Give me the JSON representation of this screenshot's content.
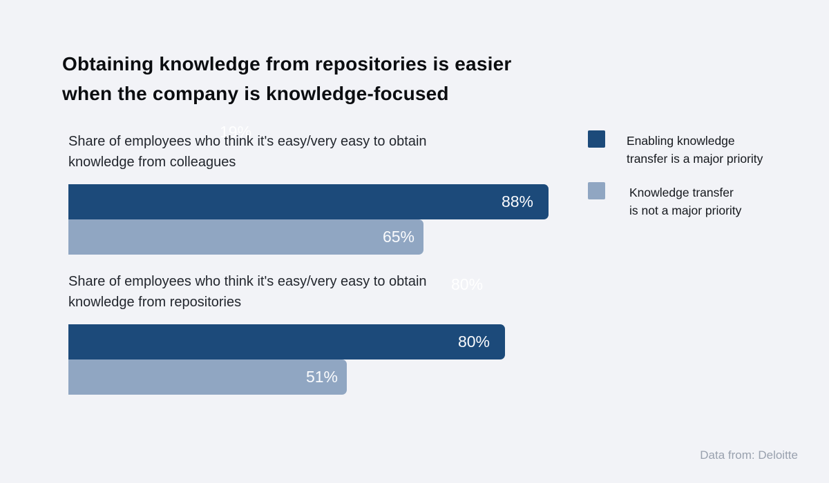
{
  "title": "Obtaining knowledge from repositories is easier when the company is knowledge-focused",
  "title_display": "Obtaining knowledge from repositories is easier\nwhen the company is knowledge-focused",
  "chart_data": {
    "type": "bar",
    "orientation": "horizontal",
    "unit": "%",
    "title": "Obtaining knowledge from repositories is easier when the company is knowledge-focused",
    "categories": [
      "Share of employees who think it's easy/very easy to obtain knowledge from colleagues",
      "Share of employees who think it's easy/very easy to obtain knowledge from repositories"
    ],
    "categories_display": [
      "Share of employees who think it's easy/very easy to obtain\nknowledge from colleagues",
      "Share of employees who think it's easy/very easy to obtain\nknowledge from repositories"
    ],
    "series": [
      {
        "name": "Enabling knowledge transfer is a major priority",
        "color": "#1c4a7a",
        "values": [
          88,
          80
        ]
      },
      {
        "name": "Knowledge transfer is not a major priority",
        "color": "#90a6c2",
        "values": [
          65,
          51
        ]
      }
    ],
    "legend_display": [
      "Enabling knowledge\ntransfer is a major priority",
      "Knowledge transfer\nis not a major priority"
    ],
    "value_labels": [
      [
        "88%",
        "80%"
      ],
      [
        "65%",
        "51%"
      ]
    ],
    "xlim": [
      0,
      100
    ],
    "grid": false,
    "legend_position": "right",
    "background_color": "#f2f3f7"
  },
  "artifacts": {
    "ghost_labels": [
      "19%",
      "80%"
    ]
  },
  "footer": {
    "source": "Data from: Deloitte"
  }
}
